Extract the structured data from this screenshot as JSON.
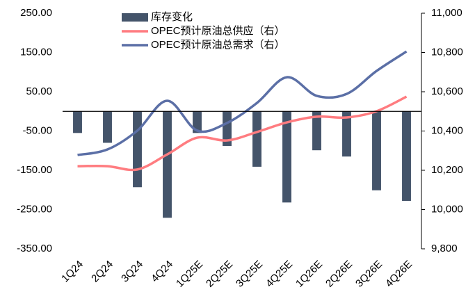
{
  "chart_data": {
    "type": "bar_line",
    "categories": [
      "1Q24",
      "2Q24",
      "3Q24",
      "4Q24",
      "1Q25E",
      "2Q25E",
      "3Q25E",
      "4Q25E",
      "1Q26E",
      "2Q26E",
      "3Q26E",
      "4Q26E"
    ],
    "series": [
      {
        "name": "库存变化",
        "type": "bar",
        "color": "#44546a",
        "values": [
          -55,
          -80,
          -193,
          -271,
          -55,
          -88,
          -141,
          -232,
          -99,
          -115,
          -201,
          -228
        ]
      },
      {
        "name": "OPEC预计原油总供应（右）",
        "type": "line",
        "axis": "y2",
        "color": "#ff7c80",
        "values": [
          10221,
          10221,
          10204,
          10281,
          10366,
          10352,
          10395,
          10444,
          10473,
          10469,
          10501,
          10575
        ]
      },
      {
        "name": "OPEC预计原油总需求（右）",
        "type": "line",
        "axis": "y2",
        "color": "#5b6fa6",
        "values": [
          10278,
          10306,
          10402,
          10554,
          10402,
          10441,
          10543,
          10674,
          10579,
          10589,
          10706,
          10805
        ]
      }
    ],
    "ylim": [
      -350,
      250
    ],
    "yticks": [
      {
        "value": 250,
        "label": "250.00"
      },
      {
        "value": 150,
        "label": "150.00"
      },
      {
        "value": 50,
        "label": "50.00"
      },
      {
        "value": -50,
        "label": "-50.00"
      },
      {
        "value": -150,
        "label": "-150.00"
      },
      {
        "value": -250,
        "label": "-250.00"
      },
      {
        "value": -350,
        "label": "-350.00"
      }
    ],
    "y2lim": [
      9800,
      11000
    ],
    "y2ticks": [
      {
        "value": 11000,
        "label": "11,000"
      },
      {
        "value": 10800,
        "label": "10,800"
      },
      {
        "value": 10600,
        "label": "10,600"
      },
      {
        "value": 10400,
        "label": "10,400"
      },
      {
        "value": 10200,
        "label": "10,200"
      },
      {
        "value": 10000,
        "label": "10,000"
      },
      {
        "value": 9800,
        "label": "9,800"
      }
    ],
    "legend": "top"
  }
}
